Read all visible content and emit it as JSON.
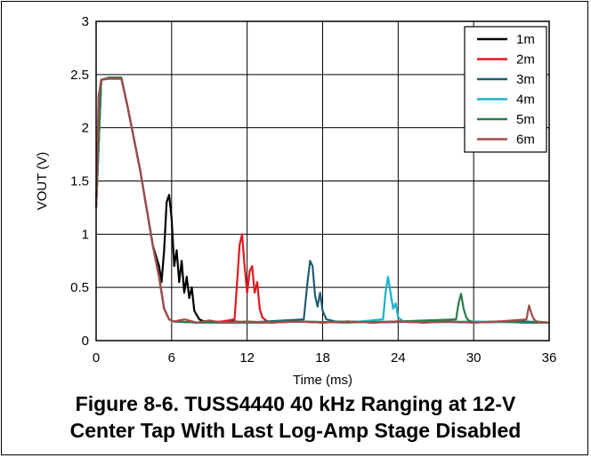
{
  "caption": {
    "line1": "Figure 8-6. TUSS4440 40 kHz Ranging at 12-V",
    "line2": "Center Tap With Last Log-Amp Stage Disabled"
  },
  "chart_data": {
    "type": "line",
    "title": "",
    "xlabel": "Time (ms)",
    "ylabel": "VOUT (V)",
    "xlim": [
      0,
      36
    ],
    "ylim": [
      0,
      3
    ],
    "xticks": [
      "0",
      "6",
      "12",
      "18",
      "24",
      "30",
      "36"
    ],
    "yticks": [
      "0",
      "0.5",
      "1",
      "1.5",
      "2",
      "2.5",
      "3"
    ],
    "grid": true,
    "legend_position": "top-right",
    "series": [
      {
        "name": "1m",
        "color": "#000000",
        "x": [
          0,
          0.4,
          1.0,
          2.0,
          2.5,
          3.5,
          4.5,
          5.0,
          5.2,
          5.4,
          5.6,
          5.8,
          6.0,
          6.2,
          6.4,
          6.6,
          6.8,
          7.0,
          7.2,
          7.4,
          7.6,
          7.8,
          8.2,
          8.6,
          9.0,
          10,
          11,
          12,
          14,
          16,
          18,
          20,
          22,
          24,
          26,
          28,
          30,
          32,
          34,
          36
        ],
        "y": [
          1.25,
          2.45,
          2.47,
          2.47,
          2.2,
          1.6,
          0.9,
          0.7,
          0.55,
          0.85,
          1.3,
          1.37,
          1.15,
          0.7,
          0.85,
          0.55,
          0.75,
          0.45,
          0.6,
          0.4,
          0.5,
          0.28,
          0.2,
          0.18,
          0.18,
          0.17,
          0.18,
          0.17,
          0.17,
          0.18,
          0.17,
          0.18,
          0.17,
          0.18,
          0.17,
          0.18,
          0.17,
          0.18,
          0.17,
          0.17
        ]
      },
      {
        "name": "2m",
        "color": "#e0181e",
        "x": [
          0,
          0.4,
          1.0,
          2.0,
          2.5,
          3.5,
          4.5,
          5.0,
          5.4,
          5.8,
          6.2,
          8,
          10,
          11.0,
          11.2,
          11.4,
          11.6,
          11.8,
          12.0,
          12.2,
          12.4,
          12.6,
          12.8,
          13.0,
          13.2,
          13.6,
          14,
          16,
          18,
          20,
          22,
          24,
          26,
          28,
          30,
          32,
          34,
          36
        ],
        "y": [
          1.25,
          2.45,
          2.47,
          2.47,
          2.2,
          1.6,
          0.9,
          0.6,
          0.3,
          0.2,
          0.18,
          0.17,
          0.18,
          0.2,
          0.55,
          0.9,
          1.0,
          0.7,
          0.45,
          0.65,
          0.7,
          0.45,
          0.55,
          0.3,
          0.22,
          0.18,
          0.17,
          0.18,
          0.17,
          0.18,
          0.17,
          0.18,
          0.17,
          0.18,
          0.17,
          0.18,
          0.17,
          0.17
        ]
      },
      {
        "name": "3m",
        "color": "#1f5d72",
        "x": [
          0,
          0.4,
          1.0,
          2.0,
          2.5,
          3.5,
          4.5,
          5.0,
          5.4,
          5.8,
          6.2,
          8,
          12,
          16.5,
          16.8,
          17.0,
          17.2,
          17.4,
          17.6,
          17.8,
          18.0,
          18.3,
          19,
          22,
          26,
          30,
          34,
          36
        ],
        "y": [
          1.25,
          2.45,
          2.47,
          2.47,
          2.2,
          1.6,
          0.9,
          0.6,
          0.3,
          0.2,
          0.18,
          0.17,
          0.17,
          0.2,
          0.55,
          0.75,
          0.7,
          0.42,
          0.32,
          0.45,
          0.28,
          0.2,
          0.18,
          0.17,
          0.18,
          0.17,
          0.18,
          0.17
        ]
      },
      {
        "name": "4m",
        "color": "#1ab3cc",
        "x": [
          0,
          0.4,
          1.0,
          2.0,
          2.5,
          3.5,
          4.5,
          5.0,
          5.4,
          5.8,
          6.2,
          8,
          12,
          16,
          20,
          22.8,
          23.0,
          23.2,
          23.4,
          23.6,
          23.8,
          24.0,
          24.4,
          26,
          30,
          34,
          36
        ],
        "y": [
          1.25,
          2.45,
          2.47,
          2.47,
          2.2,
          1.6,
          0.9,
          0.6,
          0.3,
          0.2,
          0.18,
          0.17,
          0.17,
          0.18,
          0.17,
          0.2,
          0.45,
          0.6,
          0.45,
          0.3,
          0.35,
          0.22,
          0.18,
          0.17,
          0.18,
          0.17,
          0.17
        ]
      },
      {
        "name": "5m",
        "color": "#2e7a4c",
        "x": [
          0,
          0.4,
          1.0,
          2.0,
          2.5,
          3.5,
          4.5,
          5.0,
          5.4,
          5.8,
          6.2,
          8,
          12,
          16,
          20,
          24,
          28.6,
          28.8,
          29.0,
          29.2,
          29.4,
          29.6,
          30,
          32,
          34,
          36
        ],
        "y": [
          1.25,
          2.45,
          2.47,
          2.47,
          2.2,
          1.6,
          0.9,
          0.6,
          0.3,
          0.2,
          0.18,
          0.17,
          0.17,
          0.18,
          0.17,
          0.18,
          0.2,
          0.35,
          0.44,
          0.3,
          0.22,
          0.19,
          0.17,
          0.18,
          0.17,
          0.17
        ]
      },
      {
        "name": "6m",
        "color": "#a44b4b",
        "x": [
          0,
          0.2,
          0.4,
          1.0,
          2.0,
          2.5,
          3.5,
          4.5,
          5.0,
          5.4,
          5.8,
          6.2,
          7,
          8,
          9,
          10,
          12,
          14,
          16,
          18,
          20,
          22,
          24,
          26,
          28,
          30,
          32,
          34.2,
          34.4,
          34.6,
          34.8,
          35.0,
          36
        ],
        "y": [
          1.25,
          2.3,
          2.45,
          2.46,
          2.46,
          2.2,
          1.6,
          0.9,
          0.6,
          0.3,
          0.2,
          0.18,
          0.2,
          0.17,
          0.19,
          0.17,
          0.18,
          0.17,
          0.18,
          0.17,
          0.18,
          0.17,
          0.18,
          0.17,
          0.18,
          0.17,
          0.18,
          0.2,
          0.33,
          0.25,
          0.2,
          0.18,
          0.17
        ]
      }
    ]
  }
}
